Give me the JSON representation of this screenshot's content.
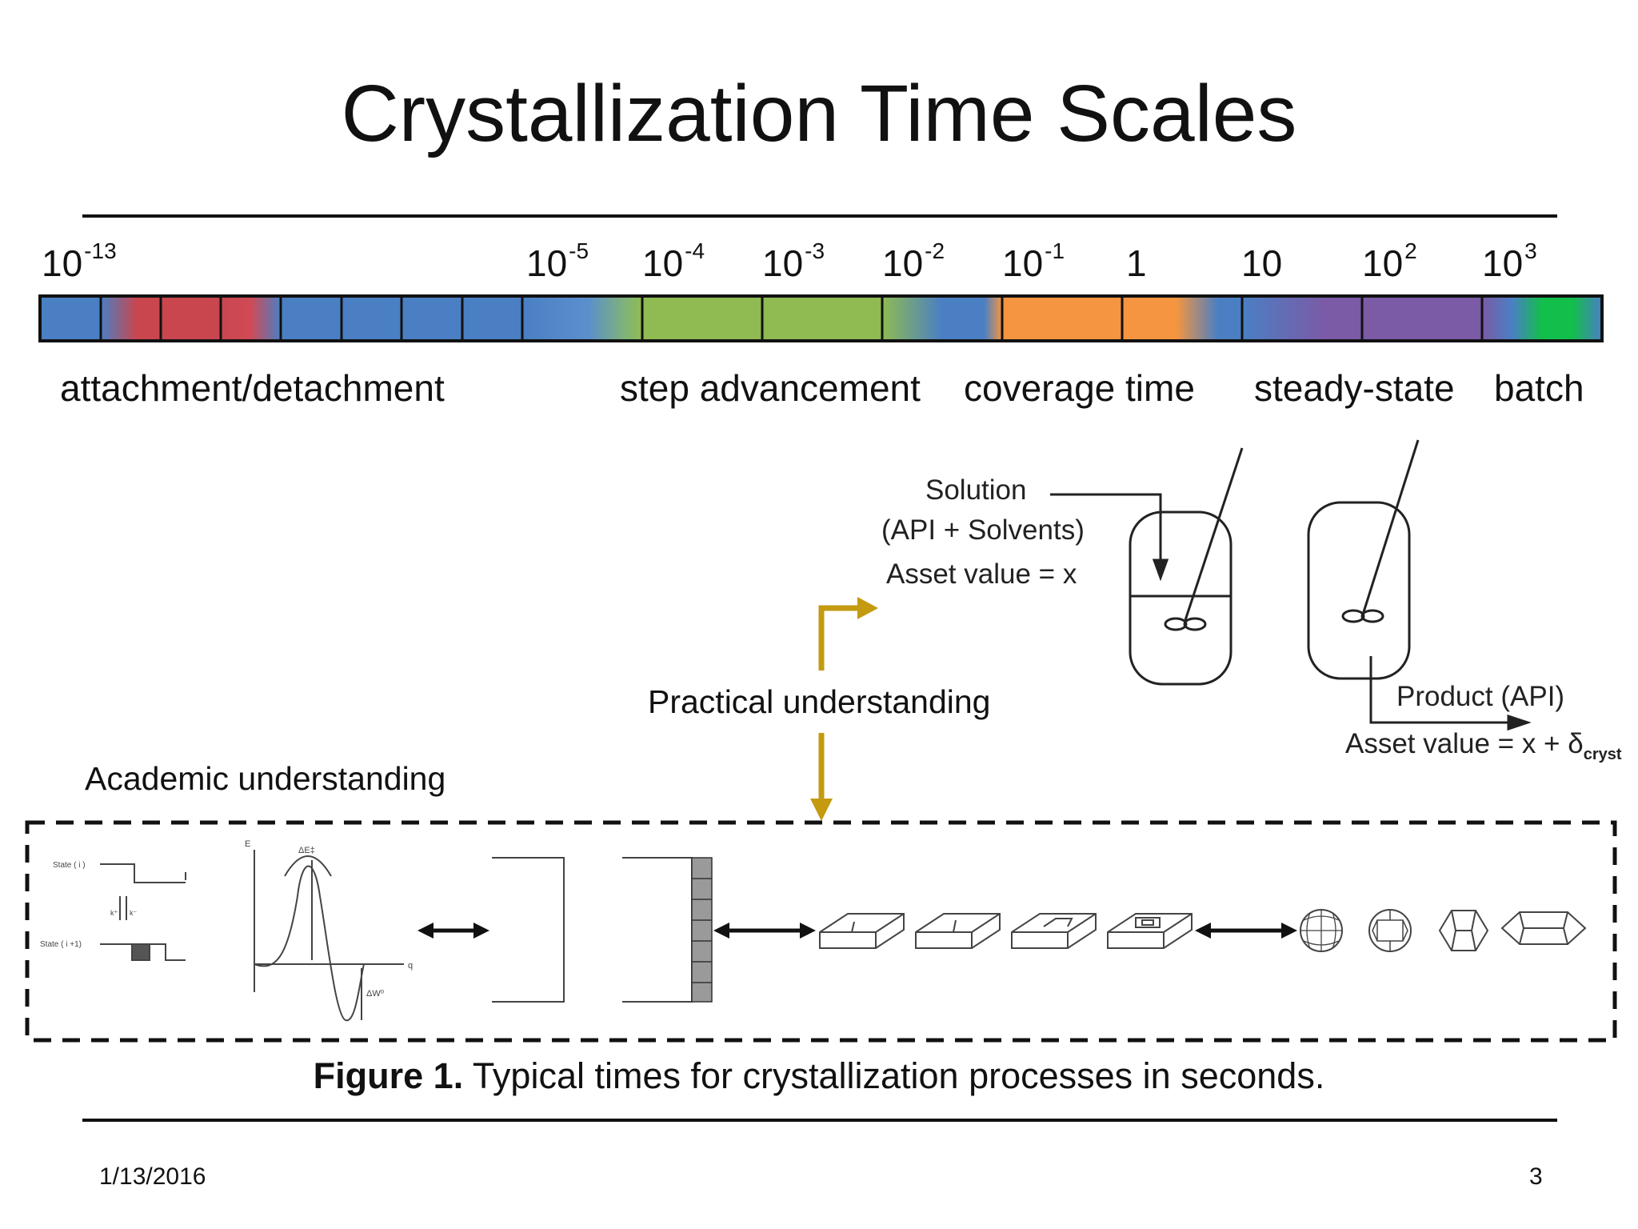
{
  "title": "Crystallization Time Scales",
  "timescale": {
    "ticks": [
      {
        "base": "10",
        "exp": "-13"
      },
      {
        "base": "10",
        "exp": "-5"
      },
      {
        "base": "10",
        "exp": "-4"
      },
      {
        "base": "10",
        "exp": "-3"
      },
      {
        "base": "10",
        "exp": "-2"
      },
      {
        "base": "10",
        "exp": "-1"
      },
      {
        "base": "1",
        "exp": ""
      },
      {
        "base": "10",
        "exp": ""
      },
      {
        "base": "10",
        "exp": "2"
      },
      {
        "base": "10",
        "exp": "3"
      }
    ],
    "processes": [
      "attachment/detachment",
      "step advancement",
      "coverage time",
      "steady-state",
      "batch"
    ],
    "colors": {
      "blue": "#4a7fc4",
      "red": "#c9464f",
      "green": "#8fbb52",
      "orange": "#f59540",
      "purple": "#7b5aa6",
      "bright_green": "#11bf4a"
    }
  },
  "labels": {
    "practical": "Practical understanding",
    "academic": "Academic understanding"
  },
  "vessels": {
    "solution": "Solution",
    "solution_composition": "(API + Solvents)",
    "asset_in": "Asset value = x",
    "product": "Product (API)",
    "asset_out": "Asset value = x + δ",
    "asset_out_sub": "cryst"
  },
  "energy": {
    "state_i": "State ( i )",
    "state_i1": "State ( i +1)",
    "k_plus": "k⁺",
    "k_minus": "k⁻",
    "e_axis": "E",
    "q_axis": "q",
    "delta_e": "ΔE‡",
    "delta_w": "ΔW⁰"
  },
  "caption": {
    "bold": "Figure 1.",
    "text": " Typical times for crystallization processes in seconds."
  },
  "footer": {
    "date": "1/13/2016",
    "page": "3"
  },
  "accent_color": "#c49a10"
}
